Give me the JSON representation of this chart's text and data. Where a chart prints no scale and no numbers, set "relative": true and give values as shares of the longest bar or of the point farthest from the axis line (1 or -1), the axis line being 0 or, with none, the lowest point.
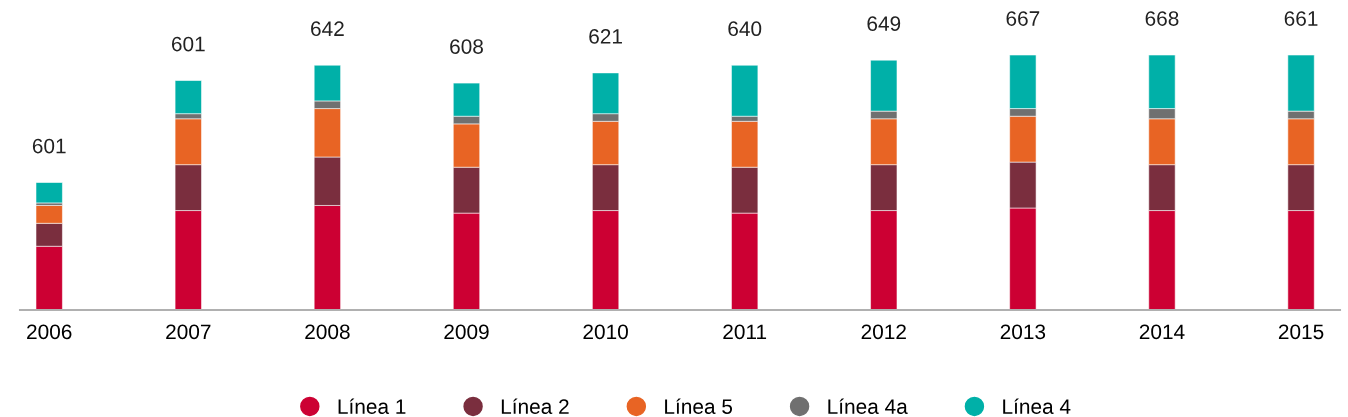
{
  "chart_data": {
    "type": "bar",
    "stacked": true,
    "relative": true,
    "categories": [
      "2006",
      "2007",
      "2008",
      "2009",
      "2010",
      "2011",
      "2012",
      "2013",
      "2014",
      "2015"
    ],
    "series": [
      {
        "name": "Línea 1",
        "color": "#cc0033",
        "values": [
          0.25,
          0.39,
          0.41,
          0.38,
          0.39,
          0.38,
          0.39,
          0.4,
          0.39,
          0.39
        ]
      },
      {
        "name": "Línea 2",
        "color": "#7a2e3e",
        "values": [
          0.09,
          0.18,
          0.19,
          0.18,
          0.18,
          0.18,
          0.18,
          0.18,
          0.18,
          0.18
        ]
      },
      {
        "name": "Línea 5",
        "color": "#e86424",
        "values": [
          0.07,
          0.18,
          0.19,
          0.17,
          0.17,
          0.18,
          0.18,
          0.18,
          0.18,
          0.18
        ]
      },
      {
        "name": "Línea 4a",
        "color": "#707070",
        "values": [
          0.01,
          0.02,
          0.03,
          0.03,
          0.03,
          0.02,
          0.03,
          0.03,
          0.04,
          0.03
        ]
      },
      {
        "name": "Línea 4",
        "color": "#00b0a8",
        "values": [
          0.08,
          0.13,
          0.14,
          0.13,
          0.16,
          0.2,
          0.2,
          0.21,
          0.21,
          0.22
        ]
      }
    ],
    "annotations": [
      {
        "text": "601",
        "x": "2006",
        "y": 0.5
      },
      {
        "text": "601",
        "x": "2007",
        "y": 0.9
      },
      {
        "text": "642",
        "x": "2008",
        "y": 0.96
      },
      {
        "text": "608",
        "x": "2009",
        "y": 0.89
      },
      {
        "text": "621",
        "x": "2010",
        "y": 0.93
      },
      {
        "text": "640",
        "x": "2011",
        "y": 0.96
      },
      {
        "text": "649",
        "x": "2012",
        "y": 0.98
      },
      {
        "text": "667",
        "x": "2013",
        "y": 1.0
      },
      {
        "text": "668",
        "x": "2014",
        "y": 1.0
      },
      {
        "text": "661",
        "x": "2015",
        "y": 1.0
      }
    ],
    "legend": "bottom",
    "grid": false
  }
}
